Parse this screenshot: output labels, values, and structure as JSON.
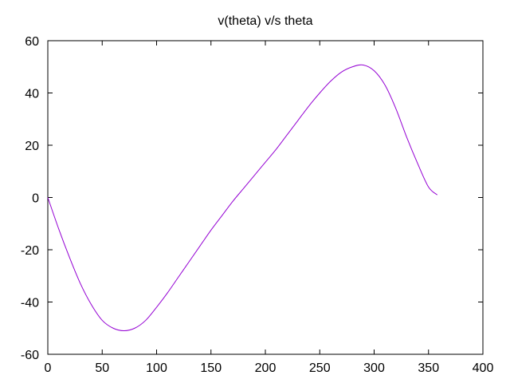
{
  "chart_data": {
    "type": "line",
    "title": "v(theta) v/s theta",
    "xlabel": "",
    "ylabel": "",
    "xlim": [
      0,
      400
    ],
    "ylim": [
      -60,
      60
    ],
    "x_ticks": [
      0,
      50,
      100,
      150,
      200,
      250,
      300,
      350,
      400
    ],
    "y_ticks": [
      -60,
      -40,
      -20,
      0,
      20,
      40,
      60
    ],
    "grid": false,
    "legend": "none",
    "series": [
      {
        "color": "#9400d3",
        "x": [
          0,
          10,
          20,
          30,
          40,
          50,
          60,
          70,
          80,
          90,
          100,
          110,
          120,
          130,
          140,
          150,
          160,
          170,
          180,
          190,
          200,
          210,
          220,
          230,
          240,
          250,
          260,
          270,
          280,
          290,
          300,
          310,
          320,
          330,
          340,
          350,
          358
        ],
        "y": [
          0,
          -12,
          -23,
          -33,
          -41,
          -47,
          -50,
          -51,
          -50,
          -47,
          -42,
          -36.5,
          -30.5,
          -24.5,
          -18.5,
          -12.5,
          -7,
          -1.5,
          3.5,
          8.5,
          13.5,
          18.5,
          24,
          29.5,
          35,
          40,
          44.5,
          48,
          50,
          50.7,
          48.5,
          43,
          34,
          23,
          13,
          4,
          1
        ]
      }
    ]
  }
}
